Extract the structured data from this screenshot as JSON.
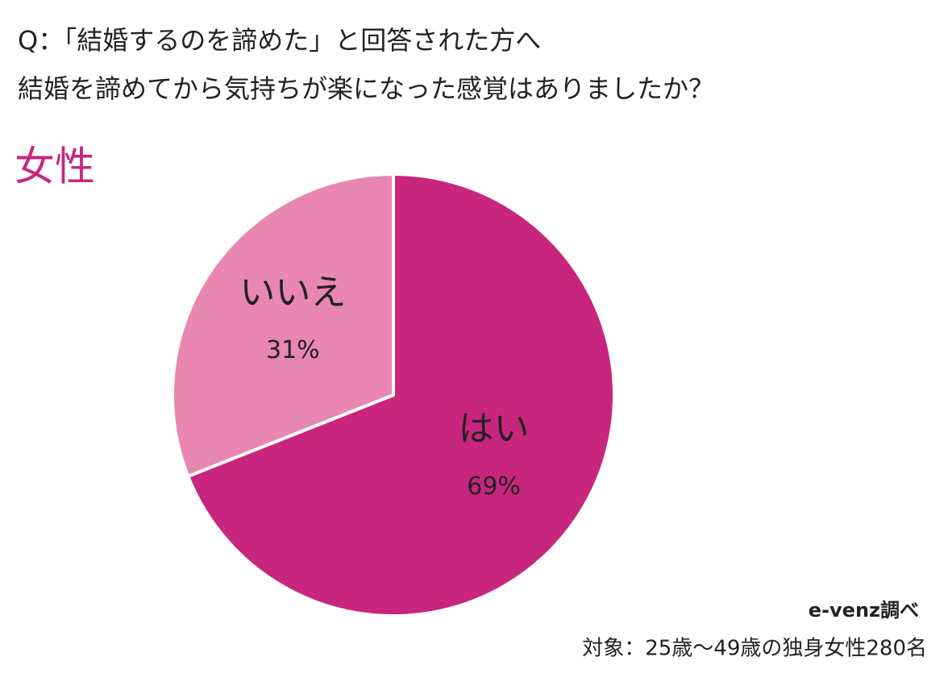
{
  "chart_data": {
    "type": "pie",
    "title": "Q：「結婚するのを諦めた」と回答された方へ",
    "subtitle": "結婚を諦めてから気持ちが楽になった感覚はありましたか？",
    "group_label": "女性",
    "categories": [
      "はい",
      "いいえ"
    ],
    "values": [
      69,
      31
    ],
    "value_labels": [
      "69%",
      "31%"
    ],
    "colors": [
      "#c8267e",
      "#e887b0"
    ],
    "source": "e-venz調べ",
    "note": "対象：25歳〜49歳の独身女性280名"
  }
}
